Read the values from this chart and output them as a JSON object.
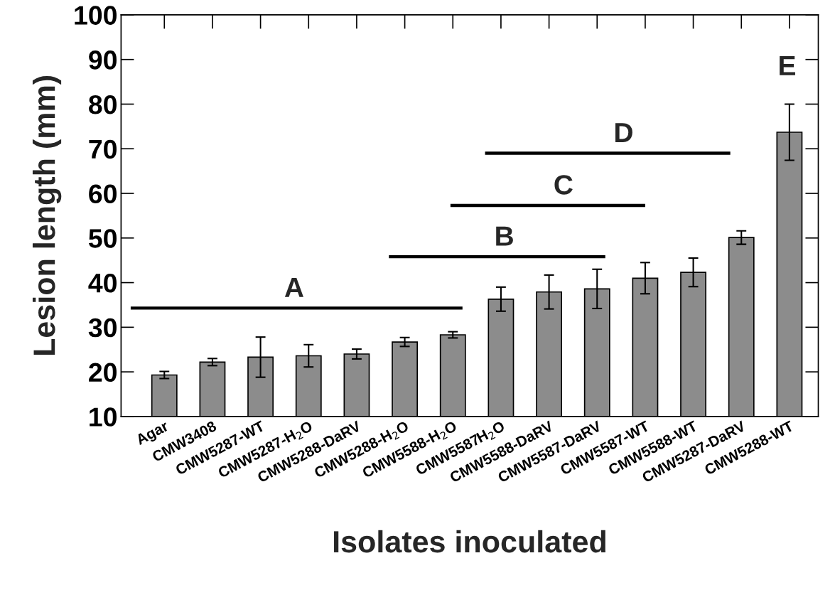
{
  "chart_data": {
    "type": "bar",
    "xlabel": "Isolates inoculated",
    "ylabel": "Lesion length (mm)",
    "categories": [
      "Agar",
      "CMW3408",
      "CMW5287-WT",
      "CMW5287-H$_{2}$O",
      "CMW5288-DaRV",
      "CMW5288-H$_{2}$O",
      "CMW5588-H$_{2}$O",
      "CMW5587H$_{2}$O",
      "CMW5588-DaRV",
      "CMW5587-DaRV",
      "CMW5587-WT",
      "CMW5588-WT",
      "CMW5287-DaRV",
      "CMW5288-WT"
    ],
    "values": [
      19.3,
      22.2,
      23.3,
      23.6,
      24.0,
      26.7,
      28.3,
      36.3,
      37.9,
      38.6,
      41.0,
      42.3,
      50.1,
      73.7
    ],
    "errors": [
      0.8,
      0.8,
      4.5,
      2.5,
      1.1,
      1.0,
      0.7,
      2.7,
      3.8,
      4.4,
      3.5,
      3.2,
      1.5,
      6.3
    ],
    "color": "#8c8c8c",
    "ylim": [
      10,
      100
    ],
    "yticks": [
      10,
      20,
      30,
      40,
      50,
      60,
      70,
      80,
      90,
      100
    ],
    "grid": false,
    "legend": false,
    "annotations": [
      "A",
      "B",
      "C",
      "D",
      "E"
    ]
  }
}
